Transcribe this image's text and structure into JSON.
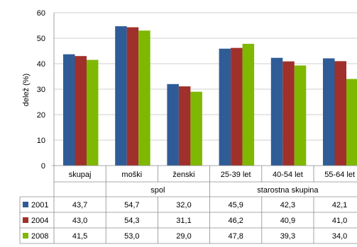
{
  "chart_data": {
    "type": "bar",
    "ylabel": "delež (%)",
    "ylim": [
      0,
      60
    ],
    "yticks": [
      0,
      10,
      20,
      30,
      40,
      50,
      60
    ],
    "grid": true,
    "categories": [
      "skupaj",
      "moški",
      "ženski",
      "25-39 let",
      "40-54 let",
      "55-64 let"
    ],
    "groups": [
      {
        "label": "spol",
        "categories": [
          "moški",
          "ženski"
        ]
      },
      {
        "label": "starostna skupina",
        "categories": [
          "25-39 let",
          "40-54 let",
          "55-64 let"
        ]
      }
    ],
    "series": [
      {
        "name": "2001",
        "color": "#2F5C97",
        "values": [
          43.7,
          54.7,
          32.0,
          45.9,
          42.3,
          42.1
        ]
      },
      {
        "name": "2004",
        "color": "#A0302B",
        "values": [
          43.0,
          54.3,
          31.1,
          46.2,
          40.9,
          41.0
        ]
      },
      {
        "name": "2008",
        "color": "#7FB800",
        "values": [
          41.5,
          53.0,
          29.0,
          47.8,
          39.3,
          34.0
        ]
      }
    ],
    "table_values": [
      [
        "43,7",
        "54,7",
        "32,0",
        "45,9",
        "42,3",
        "42,1"
      ],
      [
        "43,0",
        "54,3",
        "31,1",
        "46,2",
        "40,9",
        "41,0"
      ],
      [
        "41,5",
        "53,0",
        "29,0",
        "47,8",
        "39,3",
        "34,0"
      ]
    ]
  }
}
